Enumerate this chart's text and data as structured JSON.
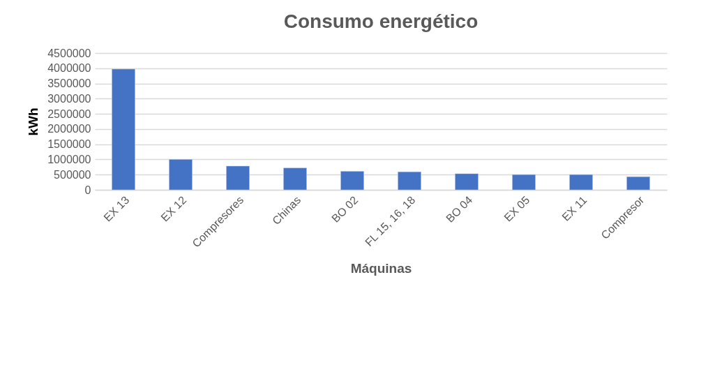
{
  "chart_data": {
    "type": "bar",
    "title": "Consumo energético",
    "xlabel": "Máquinas",
    "ylabel": "kWh",
    "categories": [
      "EX 13",
      "EX 12",
      "Compresores",
      "Chinas",
      "BO 02",
      "FL 15, 16, 18",
      "BO 04",
      "EX 05",
      "EX 11",
      "Compresor"
    ],
    "values": [
      3970000,
      1000000,
      780000,
      720000,
      610000,
      590000,
      530000,
      500000,
      500000,
      430000
    ],
    "color": "#4472c4",
    "ylim": [
      0,
      4500000
    ],
    "yticks": [
      0,
      500000,
      1000000,
      1500000,
      2000000,
      2500000,
      3000000,
      3500000,
      4000000,
      4500000
    ],
    "grid": true
  }
}
